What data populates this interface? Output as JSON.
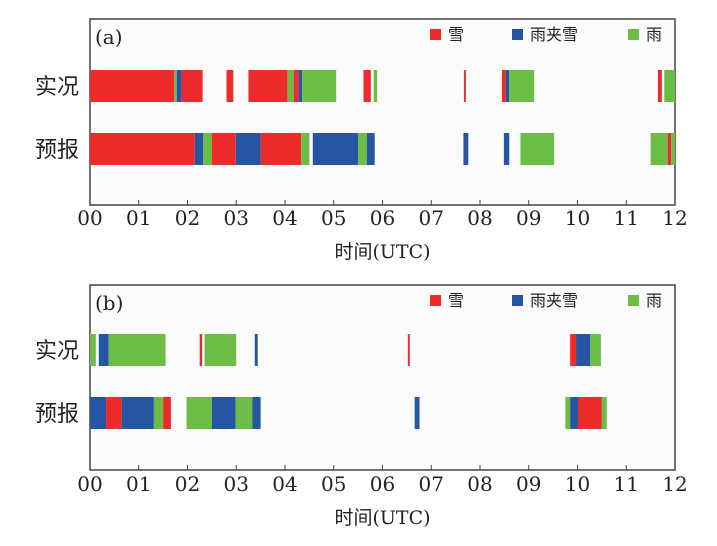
{
  "colors": {
    "snow": "#ee2b2b",
    "sleet": "#2655a4",
    "rain": "#6cbd45"
  },
  "chart_data": [
    {
      "type": "timeline",
      "panel_label": "(a)",
      "xlabel": "时间(UTC)",
      "xlim": [
        0,
        12
      ],
      "xticks": [
        "00",
        "01",
        "02",
        "03",
        "04",
        "05",
        "06",
        "07",
        "08",
        "09",
        "10",
        "11",
        "12"
      ],
      "legend": [
        {
          "key": "snow",
          "label": "雪"
        },
        {
          "key": "sleet",
          "label": "雨夹雪"
        },
        {
          "key": "rain",
          "label": "雨"
        }
      ],
      "legend_placement": "top-right",
      "rows": [
        {
          "label": "实况",
          "segments": [
            [
              0,
              1.73,
              "snow"
            ],
            [
              1.73,
              1.78,
              "rain"
            ],
            [
              1.78,
              1.88,
              "sleet"
            ],
            [
              1.88,
              2.31,
              "snow"
            ],
            [
              2.8,
              2.94,
              "snow"
            ],
            [
              3.25,
              4.05,
              "snow"
            ],
            [
              4.05,
              4.18,
              "rain"
            ],
            [
              4.18,
              4.28,
              "snow"
            ],
            [
              4.28,
              4.35,
              "sleet"
            ],
            [
              4.35,
              5.05,
              "rain"
            ],
            [
              5.61,
              5.76,
              "snow"
            ],
            [
              5.82,
              5.89,
              "rain"
            ],
            [
              7.67,
              7.71,
              "snow"
            ],
            [
              8.45,
              8.53,
              "snow"
            ],
            [
              8.53,
              8.6,
              "sleet"
            ],
            [
              8.6,
              9.11,
              "rain"
            ],
            [
              11.65,
              11.73,
              "snow"
            ],
            [
              11.78,
              12,
              "rain"
            ]
          ]
        },
        {
          "label": "预报",
          "segments": [
            [
              0,
              2.15,
              "snow"
            ],
            [
              2.15,
              2.32,
              "sleet"
            ],
            [
              2.32,
              2.5,
              "rain"
            ],
            [
              2.5,
              2.99,
              "snow"
            ],
            [
              2.99,
              3.5,
              "sleet"
            ],
            [
              3.5,
              4.33,
              "snow"
            ],
            [
              4.33,
              4.5,
              "rain"
            ],
            [
              4.57,
              5.5,
              "sleet"
            ],
            [
              5.5,
              5.68,
              "rain"
            ],
            [
              5.68,
              5.84,
              "sleet"
            ],
            [
              7.66,
              7.76,
              "sleet"
            ],
            [
              8.49,
              8.6,
              "sleet"
            ],
            [
              8.83,
              9.52,
              "rain"
            ],
            [
              11.5,
              11.85,
              "rain"
            ],
            [
              11.85,
              11.92,
              "snow"
            ],
            [
              11.92,
              12,
              "rain"
            ]
          ]
        }
      ]
    },
    {
      "type": "timeline",
      "panel_label": "(b)",
      "xlabel": "时间(UTC)",
      "xlim": [
        0,
        12
      ],
      "xticks": [
        "00",
        "01",
        "02",
        "03",
        "04",
        "05",
        "06",
        "07",
        "08",
        "09",
        "10",
        "11",
        "12"
      ],
      "legend": [
        {
          "key": "snow",
          "label": "雪"
        },
        {
          "key": "sleet",
          "label": "雨夹雪"
        },
        {
          "key": "rain",
          "label": "雨"
        }
      ],
      "legend_placement": "top-right",
      "rows": [
        {
          "label": "实况",
          "segments": [
            [
              0,
              0.12,
              "rain"
            ],
            [
              0.18,
              0.38,
              "sleet"
            ],
            [
              0.38,
              1.55,
              "rain"
            ],
            [
              2.25,
              2.3,
              "snow"
            ],
            [
              2.35,
              3.0,
              "rain"
            ],
            [
              3.38,
              3.44,
              "sleet"
            ],
            [
              6.52,
              6.56,
              "snow"
            ],
            [
              9.85,
              9.97,
              "snow"
            ],
            [
              9.97,
              10.26,
              "sleet"
            ],
            [
              10.26,
              10.48,
              "rain"
            ]
          ]
        },
        {
          "label": "预报",
          "segments": [
            [
              0,
              0.33,
              "sleet"
            ],
            [
              0.33,
              0.65,
              "snow"
            ],
            [
              0.65,
              1.31,
              "sleet"
            ],
            [
              1.31,
              1.5,
              "rain"
            ],
            [
              1.5,
              1.66,
              "snow"
            ],
            [
              1.98,
              2.5,
              "rain"
            ],
            [
              2.5,
              2.99,
              "sleet"
            ],
            [
              2.99,
              3.33,
              "rain"
            ],
            [
              3.33,
              3.5,
              "sleet"
            ],
            [
              6.66,
              6.76,
              "sleet"
            ],
            [
              9.75,
              9.85,
              "rain"
            ],
            [
              9.85,
              10.01,
              "sleet"
            ],
            [
              10.01,
              10.5,
              "snow"
            ],
            [
              10.5,
              10.6,
              "rain"
            ]
          ]
        }
      ]
    }
  ]
}
